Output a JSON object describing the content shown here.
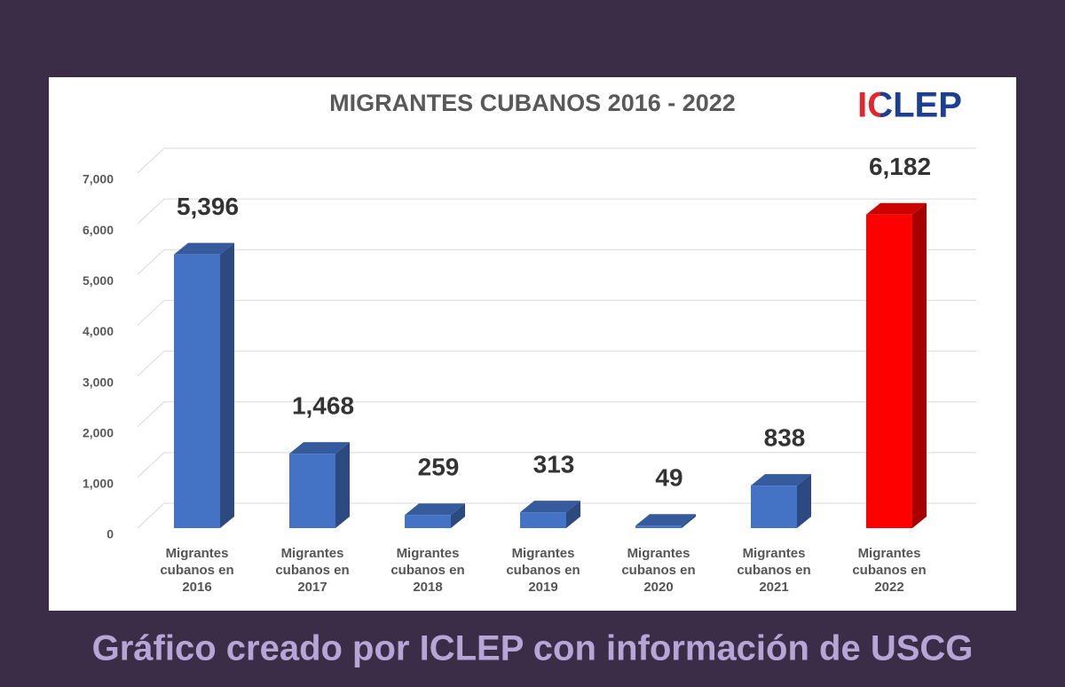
{
  "chart_data": {
    "type": "bar3d",
    "title": "MIGRANTES CUBANOS 2016 - 2022",
    "logo": "ICLEP",
    "caption": "Gráfico creado por ICLEP con información de USCG",
    "categories": [
      "Migrantes cubanos en 2016",
      "Migrantes cubanos en 2017",
      "Migrantes cubanos en 2018",
      "Migrantes cubanos en 2019",
      "Migrantes cubanos en 2020",
      "Migrantes cubanos en 2021",
      "Migrantes cubanos en 2022"
    ],
    "values": [
      5396,
      1468,
      259,
      313,
      49,
      838,
      6182
    ],
    "value_labels": [
      "5,396",
      "1,468",
      "259",
      "313",
      "49",
      "838",
      "6,182"
    ],
    "colors": [
      "#4472c4",
      "#4472c4",
      "#4472c4",
      "#4472c4",
      "#4472c4",
      "#4472c4",
      "#ff0000"
    ],
    "ylim": [
      0,
      7000
    ],
    "yticks": [
      0,
      {
        "value": 1000,
        "label": "1,000"
      },
      {
        "value": 2000,
        "label": "2,000"
      },
      {
        "value": 3000,
        "label": "3,000"
      },
      {
        "value": 4000,
        "label": "4,000"
      },
      {
        "value": 5000,
        "label": "5,000"
      },
      {
        "value": 6000,
        "label": "6,000"
      },
      {
        "value": 7000,
        "label": "7,000"
      }
    ],
    "grid": true
  }
}
